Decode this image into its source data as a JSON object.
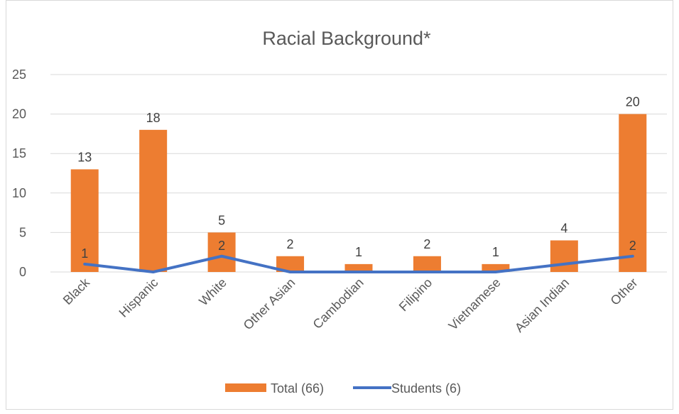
{
  "chart_data": {
    "type": "bar",
    "title": "Racial Background*",
    "categories": [
      "Black",
      "Hispanic",
      "White",
      "Other Asian",
      "Cambodian",
      "Filipino",
      "Vietnamese",
      "Asian Indian",
      "Other"
    ],
    "series": [
      {
        "name": "Total (66)",
        "type": "bar",
        "color": "#ED7D31",
        "values": [
          13,
          18,
          5,
          2,
          1,
          2,
          1,
          4,
          20
        ],
        "labels": [
          "13",
          "18",
          "5",
          "2",
          "1",
          "2",
          "1",
          "4",
          "20"
        ]
      },
      {
        "name": "Students (6)",
        "type": "line",
        "color": "#4472C4",
        "values": [
          1,
          0,
          2,
          0,
          0,
          0,
          0,
          1,
          2
        ],
        "labels": [
          "1",
          "",
          "2",
          "",
          "",
          "",
          "",
          "",
          "2"
        ]
      }
    ],
    "ylim": [
      0,
      25
    ],
    "yticks": [
      "0",
      "5",
      "10",
      "15",
      "20",
      "25"
    ],
    "grid": true,
    "legend_position": "bottom"
  }
}
